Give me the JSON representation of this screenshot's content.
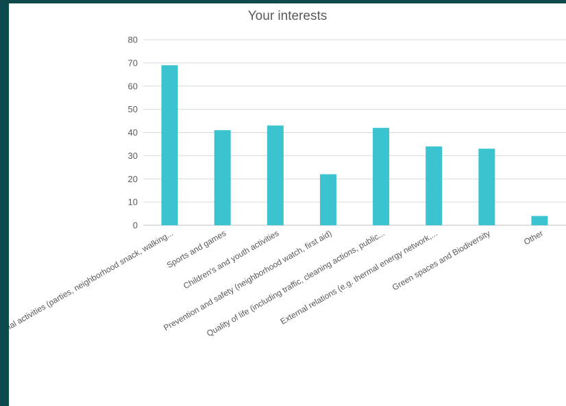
{
  "chart_data": {
    "type": "bar",
    "title": "Your interests",
    "xlabel": "",
    "ylabel": "",
    "ylim": [
      0,
      80
    ],
    "yticks": [
      0,
      10,
      20,
      30,
      40,
      50,
      60,
      70,
      80
    ],
    "grid": true,
    "legend": "none",
    "bar_color": "#3bc3cf",
    "categories": [
      "Social activities (parties, neighborhood snack, walking...",
      "Sports and games",
      "Children's and youth activities",
      "Prevention and safety (neighborhood watch, first aid)",
      "Quality of life (including traffic, cleaning actions, public...",
      "External relations (e.g. thermal energy network,...",
      "Green spaces and Biodiversity",
      "Other"
    ],
    "values": [
      69,
      41,
      43,
      22,
      42,
      34,
      33,
      4
    ]
  }
}
